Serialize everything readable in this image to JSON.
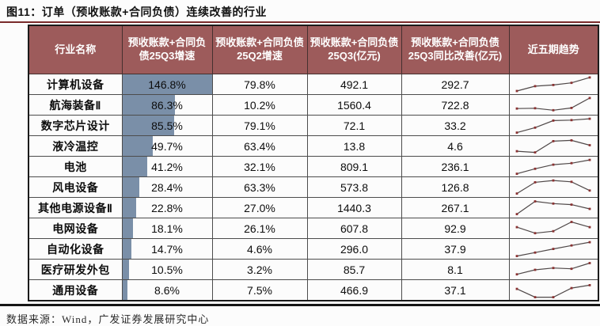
{
  "figure": {
    "title": "图11：订单（预收账款+合同负债）连续改善的行业",
    "source": "数据来源：Wind，广发证券发展研究中心"
  },
  "colors": {
    "header_bg": "#9d5b5b",
    "header_text": "#ffffff",
    "title_rule": "#7a2a2a",
    "bottom_rule": "#161616",
    "bar_fill": "#7a8fa8",
    "sparkline_line": "#4f4848",
    "sparkline_marker": "#8b3232"
  },
  "chart_data": {
    "type": "table",
    "title": "图11：订单（预收账款+合同负债）连续改善的行业",
    "columns": [
      "行业名称",
      "预收账款+合同负债25Q3增速",
      "预收账款+合同负债25Q2增速",
      "预收账款+合同负债25Q3(亿元)",
      "预收账款+合同负债25Q3同比改善(亿元)",
      "近五期趋势"
    ],
    "bar_max": 146.8,
    "rows": [
      {
        "name": "计算机设备",
        "q3": "146.8%",
        "q3v": 146.8,
        "q2": "79.8%",
        "amt": "492.1",
        "imp": "292.7",
        "trend": [
          0.08,
          0.4,
          0.48,
          0.62,
          0.98
        ]
      },
      {
        "name": "航海装备Ⅱ",
        "q3": "86.3%",
        "q3v": 86.3,
        "q2": "10.2%",
        "amt": "1560.4",
        "imp": "722.8",
        "trend": [
          0.28,
          0.3,
          0.17,
          0.32,
          0.98
        ]
      },
      {
        "name": "数字芯片设计",
        "q3": "85.5%",
        "q3v": 85.5,
        "q2": "79.1%",
        "amt": "72.1",
        "imp": "33.2",
        "trend": [
          0.05,
          0.38,
          0.85,
          0.88,
          0.97
        ]
      },
      {
        "name": "液冷温控",
        "q3": "49.7%",
        "q3v": 49.7,
        "q2": "63.4%",
        "amt": "13.8",
        "imp": "4.6",
        "trend": [
          0.18,
          0.1,
          0.85,
          0.9,
          0.58
        ]
      },
      {
        "name": "电池",
        "q3": "41.2%",
        "q3v": 41.2,
        "q2": "32.1%",
        "amt": "809.1",
        "imp": "236.1",
        "trend": [
          0.05,
          0.38,
          0.65,
          0.75,
          0.97
        ]
      },
      {
        "name": "风电设备",
        "q3": "28.4%",
        "q3v": 28.4,
        "q2": "63.3%",
        "amt": "573.8",
        "imp": "126.8",
        "trend": [
          0.1,
          0.85,
          0.97,
          0.88,
          0.3
        ]
      },
      {
        "name": "其他电源设备Ⅱ",
        "q3": "22.8%",
        "q3v": 22.8,
        "q2": "27.0%",
        "amt": "1440.3",
        "imp": "267.1",
        "trend": [
          0.1,
          0.95,
          0.8,
          0.73,
          0.45
        ]
      },
      {
        "name": "电网设备",
        "q3": "18.1%",
        "q3v": 18.1,
        "q2": "26.1%",
        "amt": "607.8",
        "imp": "92.9",
        "trend": [
          0.6,
          0.2,
          0.33,
          0.95,
          0.6
        ]
      },
      {
        "name": "自动化设备",
        "q3": "14.7%",
        "q3v": 14.7,
        "q2": "4.6%",
        "amt": "296.0",
        "imp": "37.9",
        "trend": [
          0.05,
          0.28,
          0.52,
          0.75,
          0.97
        ]
      },
      {
        "name": "医疗研发外包",
        "q3": "10.5%",
        "q3v": 10.5,
        "q2": "3.2%",
        "amt": "85.7",
        "imp": "8.1",
        "trend": [
          0.2,
          0.5,
          0.62,
          0.57,
          0.95
        ]
      },
      {
        "name": "通用设备",
        "q3": "8.6%",
        "q3v": 8.6,
        "q2": "7.5%",
        "amt": "466.9",
        "imp": "37.1",
        "trend": [
          0.6,
          0.05,
          0.05,
          0.65,
          0.85
        ]
      }
    ]
  }
}
